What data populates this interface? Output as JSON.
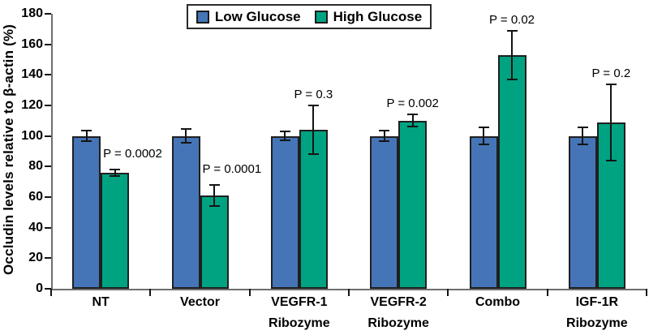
{
  "chart_data": {
    "type": "bar",
    "title": "",
    "xlabel": "",
    "ylabel": "Occludin levels relative to β-actin (%)",
    "ylim": [
      0,
      180
    ],
    "ytick_step": 20,
    "grid": false,
    "legend_position": "top-center",
    "categories": [
      {
        "line1": "NT",
        "line2": ""
      },
      {
        "line1": "Vector",
        "line2": ""
      },
      {
        "line1": "VEGFR-1",
        "line2": "Ribozyme"
      },
      {
        "line1": "VEGFR-2",
        "line2": "Ribozyme"
      },
      {
        "line1": "Combo",
        "line2": ""
      },
      {
        "line1": "IGF-1R",
        "line2": "Ribozyme"
      }
    ],
    "series": [
      {
        "name": "Low Glucose",
        "color": "#4575B7",
        "values": [
          100,
          100,
          100,
          100,
          100,
          100
        ],
        "errors": [
          3.5,
          4.5,
          3,
          3.5,
          5.5,
          5.5
        ]
      },
      {
        "name": "High Glucose",
        "color": "#00A381",
        "values": [
          76,
          61,
          104,
          110,
          153,
          109
        ],
        "errors": [
          2,
          7,
          16,
          4,
          16,
          25
        ]
      }
    ],
    "p_labels": [
      {
        "text": "P = 0.0002",
        "placement": "beside"
      },
      {
        "text": "P = 0.0001",
        "placement": "beside"
      },
      {
        "text": "P = 0.3",
        "placement": "above"
      },
      {
        "text": "P = 0.002",
        "placement": "above"
      },
      {
        "text": "P = 0.02",
        "placement": "above"
      },
      {
        "text": "P = 0.2",
        "placement": "above"
      }
    ],
    "axis_color": "#6e6e6e",
    "tick_color": "#141414",
    "bar_border_color": "#1f1f1f",
    "error_bar_color": "#141414"
  }
}
